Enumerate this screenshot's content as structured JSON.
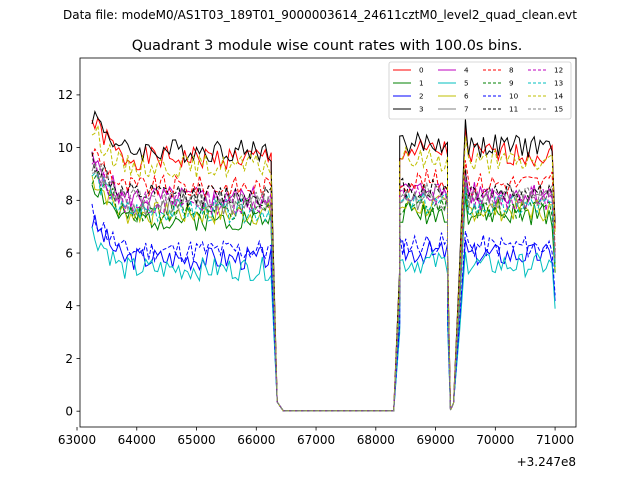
{
  "chart_data": {
    "type": "line",
    "suptitle": "Data file: modeM0/AS1T03_189T01_9000003614_24611cztM0_level2_quad_clean.evt",
    "title": "Quadrant 3 module wise count rates with 100.0s bins.",
    "xlabel": "",
    "ylabel": "",
    "x_offset_label": "+3.247e8",
    "xlim": [
      63050,
      71350
    ],
    "ylim": [
      -0.6,
      13.4
    ],
    "x_ticks": [
      63000,
      64000,
      65000,
      66000,
      67000,
      68000,
      69000,
      70000,
      71000
    ],
    "x_tick_labels": [
      "63000",
      "64000",
      "65000",
      "66000",
      "67000",
      "68000",
      "69000",
      "70000",
      "71000"
    ],
    "y_ticks": [
      0,
      2,
      4,
      6,
      8,
      10,
      12
    ],
    "y_tick_labels": [
      "0",
      "2",
      "4",
      "6",
      "8",
      "10",
      "12"
    ],
    "legend_position": "top-right",
    "legend_columns": 4,
    "segments": [
      [
        63250,
        66250
      ],
      [
        68400,
        69200
      ],
      [
        69500,
        70950
      ]
    ],
    "transitions": [
      [
        66250,
        66350,
        66450
      ],
      [
        68300,
        68400,
        68500
      ],
      [
        69200,
        69250,
        69300,
        69400,
        69500
      ],
      [
        70950,
        71000
      ]
    ],
    "series": [
      {
        "name": "0",
        "color": "#ff0000",
        "dash": false,
        "level": 9.6
      },
      {
        "name": "1",
        "color": "#008000",
        "dash": false,
        "level": 7.3
      },
      {
        "name": "2",
        "color": "#0000ff",
        "dash": false,
        "level": 5.8
      },
      {
        "name": "3",
        "color": "#000000",
        "dash": false,
        "level": 9.9
      },
      {
        "name": "4",
        "color": "#bf00bf",
        "dash": false,
        "level": 8.1
      },
      {
        "name": "5",
        "color": "#00bfbf",
        "dash": false,
        "level": 5.4
      },
      {
        "name": "6",
        "color": "#bfbf00",
        "dash": false,
        "level": 7.5
      },
      {
        "name": "7",
        "color": "#808080",
        "dash": false,
        "level": 7.8
      },
      {
        "name": "8",
        "color": "#ff0000",
        "dash": true,
        "level": 8.5
      },
      {
        "name": "9",
        "color": "#008000",
        "dash": true,
        "level": 7.6
      },
      {
        "name": "10",
        "color": "#0000ff",
        "dash": true,
        "level": 6.1
      },
      {
        "name": "11",
        "color": "#000000",
        "dash": true,
        "level": 8.2
      },
      {
        "name": "12",
        "color": "#bf00bf",
        "dash": true,
        "level": 7.9
      },
      {
        "name": "13",
        "color": "#00bfbf",
        "dash": true,
        "level": 7.6
      },
      {
        "name": "14",
        "color": "#bfbf00",
        "dash": true,
        "level": 9.3
      },
      {
        "name": "15",
        "color": "#808080",
        "dash": true,
        "level": 8.0
      }
    ]
  }
}
